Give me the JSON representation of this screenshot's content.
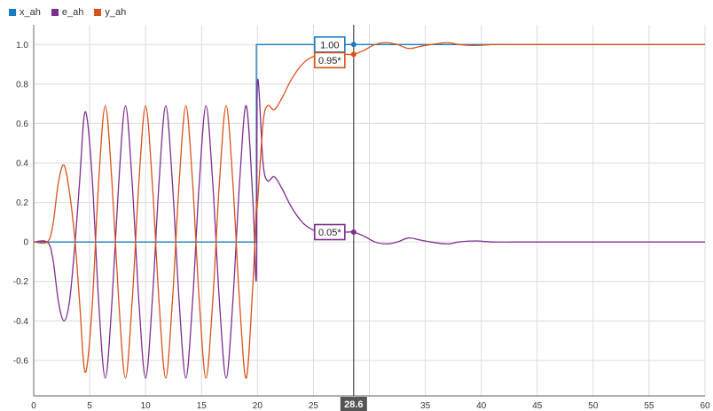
{
  "chart_data": {
    "type": "line",
    "title": "",
    "xlabel": "",
    "ylabel": "",
    "xlim": [
      0,
      60
    ],
    "ylim": [
      -0.78,
      1.1
    ],
    "grid": true,
    "legend_placement": "top-left",
    "x_ticks": [
      0,
      5,
      10,
      15,
      20,
      25,
      30,
      35,
      40,
      45,
      50,
      55,
      60
    ],
    "x_tick_labels": [
      "0",
      "5",
      "10",
      "15",
      "20",
      "25",
      "",
      "35",
      "40",
      "45",
      "50",
      "55",
      "60"
    ],
    "y_ticks": [
      -0.6,
      -0.4,
      -0.2,
      0,
      0.2,
      0.4,
      0.6,
      0.8,
      1.0
    ],
    "y_tick_labels": [
      "-0.6",
      "-0.4",
      "-0.2",
      "0",
      "0.2",
      "0.4",
      "0.6",
      "0.8",
      "1.0"
    ],
    "series": [
      {
        "name": "x_ah",
        "color": "#1a7bc0",
        "x": [
          0,
          19.9,
          19.9,
          60
        ],
        "y": [
          0,
          0,
          1.0,
          1.0
        ]
      },
      {
        "name": "e_ah",
        "color": "#7e2f8e",
        "x": [
          0,
          1.2,
          1.7,
          2.2,
          2.7,
          3.2,
          3.7,
          4.1,
          4.6,
          5.2,
          5.8,
          6.4,
          7.0,
          7.6,
          8.2,
          8.8,
          9.4,
          10.0,
          10.6,
          11.2,
          11.8,
          12.4,
          13.0,
          13.6,
          14.2,
          14.8,
          15.4,
          16.0,
          16.6,
          17.2,
          17.8,
          18.4,
          19.0,
          19.6,
          19.9,
          20.0,
          20.5,
          20.9,
          21.5,
          22.2,
          23.0,
          24.0,
          25.0,
          26.0,
          27.0,
          28.0,
          28.6,
          29.5,
          30.5,
          31.5,
          32.5,
          33.5,
          34.5,
          35.5,
          37.0,
          38.0,
          39.5,
          41.0,
          43.0,
          46.0,
          50.0,
          55.0,
          60.0
        ],
        "y": [
          0,
          0,
          -0.08,
          -0.3,
          -0.4,
          -0.3,
          0.0,
          0.3,
          0.66,
          0.35,
          -0.3,
          -0.69,
          -0.3,
          0.3,
          0.69,
          0.3,
          -0.3,
          -0.69,
          -0.3,
          0.3,
          0.69,
          0.3,
          -0.3,
          -0.69,
          -0.3,
          0.3,
          0.69,
          0.3,
          -0.3,
          -0.69,
          -0.3,
          0.3,
          0.69,
          0.2,
          -0.18,
          0.81,
          0.4,
          0.31,
          0.33,
          0.27,
          0.18,
          0.1,
          0.06,
          0.05,
          0.05,
          0.05,
          0.05,
          0.03,
          0.0,
          -0.01,
          0.0,
          0.02,
          0.01,
          0.0,
          -0.01,
          0.0,
          0.005,
          0.0,
          0.0,
          0.0,
          0.0,
          0.0,
          0.0
        ]
      },
      {
        "name": "y_ah",
        "color": "#d95319",
        "x": [
          0,
          1.2,
          1.7,
          2.2,
          2.7,
          3.2,
          3.7,
          4.1,
          4.6,
          5.2,
          5.8,
          6.4,
          7.0,
          7.6,
          8.2,
          8.8,
          9.4,
          10.0,
          10.6,
          11.2,
          11.8,
          12.4,
          13.0,
          13.6,
          14.2,
          14.8,
          15.4,
          16.0,
          16.6,
          17.2,
          17.8,
          18.4,
          19.0,
          19.6,
          19.9,
          20.0,
          20.5,
          20.9,
          21.5,
          22.2,
          23.0,
          24.0,
          25.0,
          26.0,
          27.0,
          28.0,
          28.6,
          29.5,
          30.5,
          31.5,
          32.5,
          33.5,
          34.5,
          35.5,
          37.0,
          38.0,
          39.5,
          41.0,
          43.0,
          46.0,
          50.0,
          55.0,
          60.0
        ],
        "y": [
          0,
          0,
          0.08,
          0.3,
          0.39,
          0.25,
          0.0,
          -0.3,
          -0.66,
          -0.35,
          0.3,
          0.69,
          0.3,
          -0.3,
          -0.69,
          -0.3,
          0.3,
          0.69,
          0.3,
          -0.3,
          -0.69,
          -0.3,
          0.3,
          0.69,
          0.3,
          -0.3,
          -0.69,
          -0.3,
          0.3,
          0.69,
          0.3,
          -0.3,
          -0.69,
          -0.2,
          0.18,
          0.19,
          0.6,
          0.69,
          0.67,
          0.73,
          0.82,
          0.9,
          0.94,
          0.95,
          0.95,
          0.95,
          0.95,
          0.97,
          1.0,
          1.01,
          1.0,
          0.98,
          0.99,
          1.0,
          1.01,
          1.0,
          0.995,
          1.0,
          1.0,
          1.0,
          1.0,
          1.0,
          1.0
        ]
      }
    ],
    "cursor": {
      "x": 28.6,
      "readout": "28.6",
      "values": [
        {
          "series": "x_ah",
          "label": "1.00",
          "y": 1.0
        },
        {
          "series": "y_ah",
          "label": "0.95*",
          "y": 0.95
        },
        {
          "series": "e_ah",
          "label": "0.05*",
          "y": 0.05
        }
      ]
    }
  }
}
